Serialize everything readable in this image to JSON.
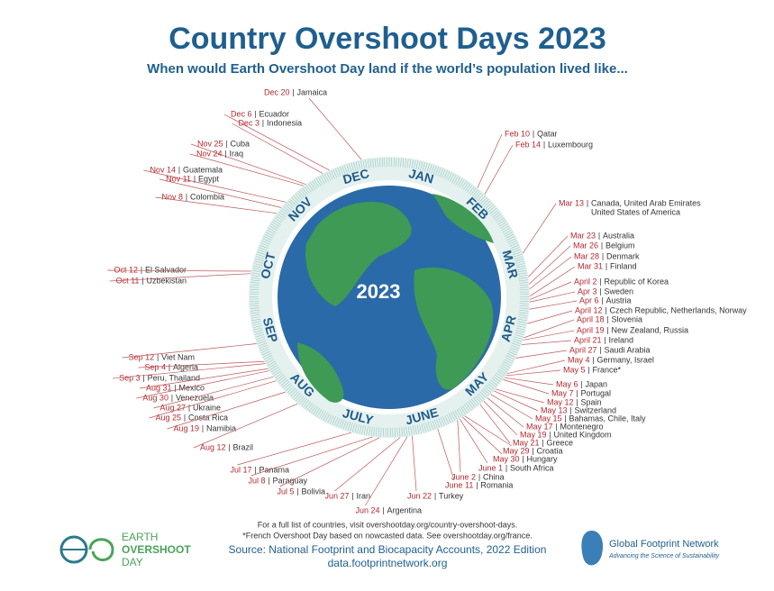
{
  "header": {
    "title": "Country Overshoot Days 2023",
    "subtitle": "When would Earth Overshoot Day land if the world’s population lived like..."
  },
  "center_label": "2023",
  "months": [
    "JAN",
    "FEB",
    "MAR",
    "APR",
    "MAY",
    "JUNE",
    "JULY",
    "AUG",
    "SEP",
    "OCT",
    "NOV",
    "DEC"
  ],
  "entries": [
    {
      "date": "Dec 20",
      "countries": [
        "Jamaica"
      ]
    },
    {
      "date": "Dec 6",
      "countries": [
        "Ecuador"
      ]
    },
    {
      "date": "Dec 3",
      "countries": [
        "Indonesia"
      ]
    },
    {
      "date": "Nov 25",
      "countries": [
        "Cuba"
      ]
    },
    {
      "date": "Nov 24",
      "countries": [
        "Iraq"
      ]
    },
    {
      "date": "Nov 14",
      "countries": [
        "Guatemala"
      ]
    },
    {
      "date": "Nov 11",
      "countries": [
        "Egypt"
      ]
    },
    {
      "date": "Nov 8",
      "countries": [
        "Colombia"
      ]
    },
    {
      "date": "Oct 12",
      "countries": [
        "El Salvador"
      ]
    },
    {
      "date": "Oct 11",
      "countries": [
        "Uzbekistan"
      ]
    },
    {
      "date": "Sep 12",
      "countries": [
        "Viet Nam"
      ]
    },
    {
      "date": "Sep 4",
      "countries": [
        "Algeria"
      ]
    },
    {
      "date": "Sep 3",
      "countries": [
        "Peru, Thailand"
      ]
    },
    {
      "date": "Aug 31",
      "countries": [
        "Mexico"
      ]
    },
    {
      "date": "Aug 30",
      "countries": [
        "Venezuela"
      ]
    },
    {
      "date": "Aug 27",
      "countries": [
        "Ukraine"
      ]
    },
    {
      "date": "Aug 25",
      "countries": [
        "Costa Rica"
      ]
    },
    {
      "date": "Aug 19",
      "countries": [
        "Namibia"
      ]
    },
    {
      "date": "Aug 12",
      "countries": [
        "Brazil"
      ]
    },
    {
      "date": "Jul 17",
      "countries": [
        "Panama"
      ]
    },
    {
      "date": "Jul 8",
      "countries": [
        "Paraguay"
      ]
    },
    {
      "date": "Jul 5",
      "countries": [
        "Bolivia"
      ]
    },
    {
      "date": "Jun 27",
      "countries": [
        "Iran"
      ]
    },
    {
      "date": "Jun 24",
      "countries": [
        "Argentina"
      ]
    },
    {
      "date": "Jun 22",
      "countries": [
        "Turkey"
      ]
    },
    {
      "date": "June 11",
      "countries": [
        "Romania"
      ]
    },
    {
      "date": "June 2",
      "countries": [
        "China"
      ]
    },
    {
      "date": "June 1",
      "countries": [
        "South Africa"
      ]
    },
    {
      "date": "May 30",
      "countries": [
        "Hungary"
      ]
    },
    {
      "date": "May 29",
      "countries": [
        "Croatia"
      ]
    },
    {
      "date": "May 21",
      "countries": [
        "Greece"
      ]
    },
    {
      "date": "May 19",
      "countries": [
        "United Kingdom"
      ]
    },
    {
      "date": "May 17",
      "countries": [
        "Montenegro"
      ]
    },
    {
      "date": "May 15",
      "countries": [
        "Bahamas, Chile, Italy"
      ]
    },
    {
      "date": "May 13",
      "countries": [
        "Switzerland"
      ]
    },
    {
      "date": "May 12",
      "countries": [
        "Spain"
      ]
    },
    {
      "date": "May 7",
      "countries": [
        "Portugal"
      ]
    },
    {
      "date": "May 6",
      "countries": [
        "Japan"
      ]
    },
    {
      "date": "May 5",
      "countries": [
        "France*"
      ]
    },
    {
      "date": "May 4",
      "countries": [
        "Germany, Israel"
      ]
    },
    {
      "date": "April 27",
      "countries": [
        "Saudi Arabia"
      ]
    },
    {
      "date": "April 21",
      "countries": [
        "Ireland"
      ]
    },
    {
      "date": "April 19",
      "countries": [
        "New Zealand, Russia"
      ]
    },
    {
      "date": "April 18",
      "countries": [
        "Slovenia"
      ]
    },
    {
      "date": "April 12",
      "countries": [
        "Czech Republic, Netherlands, Norway"
      ]
    },
    {
      "date": "Apr 6",
      "countries": [
        "Austria"
      ]
    },
    {
      "date": "Apr 3",
      "countries": [
        "Sweden"
      ]
    },
    {
      "date": "April 2",
      "countries": [
        "Republic of Korea"
      ]
    },
    {
      "date": "Mar 31",
      "countries": [
        "Finland"
      ]
    },
    {
      "date": "Mar 28",
      "countries": [
        "Denmark"
      ]
    },
    {
      "date": "Mar 26",
      "countries": [
        "Belgium"
      ]
    },
    {
      "date": "Mar 23",
      "countries": [
        "Australia"
      ]
    },
    {
      "date": "Mar 13",
      "countries": [
        "Canada, United Arab Emirates",
        "United States of America"
      ]
    },
    {
      "date": "Feb 14",
      "countries": [
        "Luxembourg"
      ]
    },
    {
      "date": "Feb 10",
      "countries": [
        "Qatar"
      ]
    }
  ],
  "footer": {
    "notes": [
      "For a full list of countries, visit overshootday.org/country-overshoot-days.",
      "*French Overshoot Day based on nowcasted data. See overshootday.org/france."
    ],
    "source": "Source: National Footprint and Biocapacity Accounts, 2022 Edition",
    "url": "data.footprintnetwork.org",
    "left_logo": [
      "EARTH",
      "OVERSHOOT",
      "DAY"
    ],
    "right_logo": {
      "name": "Global Footprint Network",
      "tagline": "Advancing the Science of Sustainability"
    }
  }
}
